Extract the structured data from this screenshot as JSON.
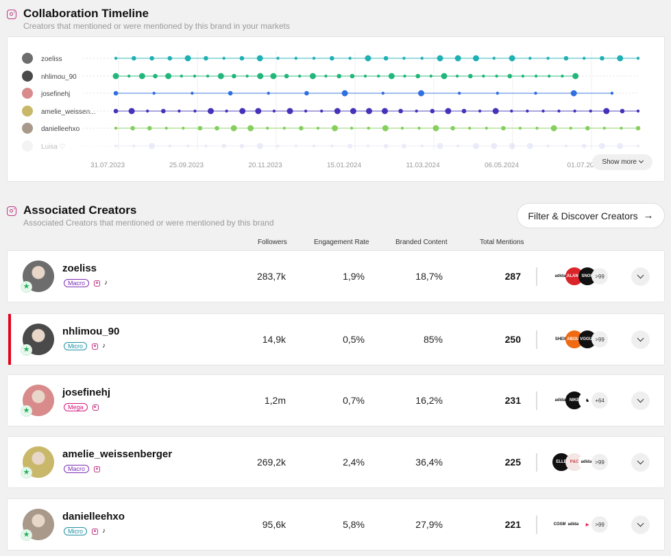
{
  "timeline": {
    "title": "Collaboration Timeline",
    "subtitle": "Creators that mentioned or were mentioned by this brand in your markets",
    "show_more": "Show more",
    "dates": [
      "31.07.2023",
      "25.09.2023",
      "20.11.2023",
      "15.01.2024",
      "11.03.2024",
      "06.05.2024",
      "01.07.20"
    ],
    "creators": [
      {
        "name": "zoeliss",
        "color": "#1fb0b4",
        "start": 0.0,
        "end": 1.0,
        "density": 30
      },
      {
        "name": "nhlimou_90",
        "color": "#22b67a",
        "start": 0.0,
        "end": 0.88,
        "density": 36
      },
      {
        "name": "josefinehj",
        "color": "#2f6fe0",
        "start": 0.0,
        "end": 0.95,
        "density": 14
      },
      {
        "name": "amelie_weissen...",
        "color": "#4433b8",
        "start": 0.0,
        "end": 1.0,
        "density": 34
      },
      {
        "name": "danielleehxo",
        "color": "#86cf5f",
        "start": 0.0,
        "end": 1.0,
        "density": 32
      },
      {
        "name": "Luisa ♡",
        "color": "#c5c8ec",
        "start": 0.0,
        "end": 1.0,
        "density": 30
      }
    ]
  },
  "associated": {
    "title": "Associated Creators",
    "subtitle": "Associated Creators that mentioned or were mentioned by this brand",
    "filter_button": "Filter & Discover Creators",
    "columns": {
      "followers": "Followers",
      "engagement": "Engagement Rate",
      "branded": "Branded Content",
      "mentions": "Total Mentions"
    },
    "rows": [
      {
        "name": "zoeliss",
        "tier": "Macro",
        "tiktok": "♪",
        "followers": "283,7k",
        "engagement": "1,9%",
        "branded": "18,7%",
        "mentions": "287",
        "more": ">99",
        "logos": [
          {
            "text": "adidas",
            "fg": "#111",
            "bg": "#fff"
          },
          {
            "text": "ZALANDO",
            "fg": "#fff",
            "bg": "#d9242a"
          },
          {
            "text": "SNOR",
            "fg": "#fff",
            "bg": "#111"
          }
        ]
      },
      {
        "name": "nhlimou_90",
        "tier": "Micro",
        "tiktok": "♪",
        "followers": "14,9k",
        "engagement": "0,5%",
        "branded": "85%",
        "mentions": "250",
        "more": ">99",
        "logos": [
          {
            "text": "SHEIN",
            "fg": "#111",
            "bg": "#fff"
          },
          {
            "text": "ABOUT",
            "fg": "#fff",
            "bg": "#ef6a12"
          },
          {
            "text": "VOGUE",
            "fg": "#fff",
            "bg": "#111"
          }
        ]
      },
      {
        "name": "josefinehj",
        "tier": "Mega",
        "tiktok": "",
        "followers": "1,2m",
        "engagement": "0,7%",
        "branded": "16,2%",
        "mentions": "231",
        "more": "+64",
        "logos": [
          {
            "text": "adidas",
            "fg": "#111",
            "bg": "#fff"
          },
          {
            "text": "NIKE",
            "fg": "#fff",
            "bg": "#111"
          },
          {
            "text": "♞",
            "fg": "#111",
            "bg": "#fff"
          }
        ]
      },
      {
        "name": "amelie_weissenberger",
        "tier": "Macro",
        "tiktok": "",
        "followers": "269,2k",
        "engagement": "2,4%",
        "branded": "36,4%",
        "mentions": "225",
        "more": ">99",
        "logos": [
          {
            "text": "ELLE",
            "fg": "#fff",
            "bg": "#111"
          },
          {
            "text": "P&C",
            "fg": "#c44",
            "bg": "#f5e6e6"
          },
          {
            "text": "adidas",
            "fg": "#111",
            "bg": "#fff"
          }
        ]
      },
      {
        "name": "danielleehxo",
        "tier": "Micro",
        "tiktok": "♪",
        "followers": "95,6k",
        "engagement": "5,8%",
        "branded": "27,9%",
        "mentions": "221",
        "more": ">99",
        "logos": [
          {
            "text": "COSMO",
            "fg": "#111",
            "bg": "#fff"
          },
          {
            "text": "adidas",
            "fg": "#111",
            "bg": "#fff"
          },
          {
            "text": "▶",
            "fg": "#e25",
            "bg": "#fff"
          }
        ]
      }
    ]
  }
}
